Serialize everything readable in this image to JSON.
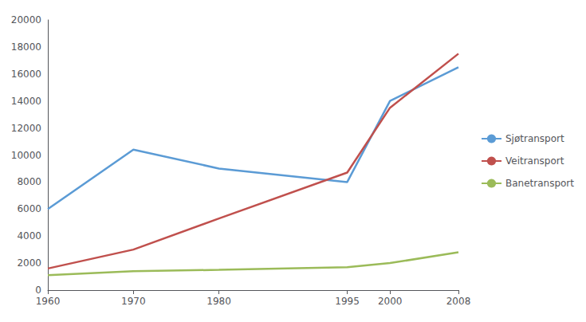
{
  "chart_data": {
    "type": "line",
    "x": [
      1960,
      1970,
      1980,
      1995,
      2000,
      2008
    ],
    "series": [
      {
        "name": "Sjøtransport",
        "color": "#5B9BD5",
        "values": [
          6000,
          10400,
          9000,
          8000,
          14000,
          16500
        ]
      },
      {
        "name": "Veitransport",
        "color": "#C0504D",
        "values": [
          1600,
          3000,
          5300,
          8700,
          13500,
          17500
        ]
      },
      {
        "name": "Banetransport",
        "color": "#9BBB59",
        "values": [
          1100,
          1400,
          1500,
          1700,
          2000,
          2800
        ]
      }
    ],
    "xlim": [
      1960,
      2008
    ],
    "xticks": [
      1960,
      1970,
      1980,
      1995,
      2000,
      2008
    ],
    "ylim": [
      0,
      20000
    ],
    "yticks": [
      0,
      2000,
      4000,
      6000,
      8000,
      10000,
      12000,
      14000,
      16000,
      18000,
      20000
    ],
    "grid": false,
    "legend": "right"
  }
}
